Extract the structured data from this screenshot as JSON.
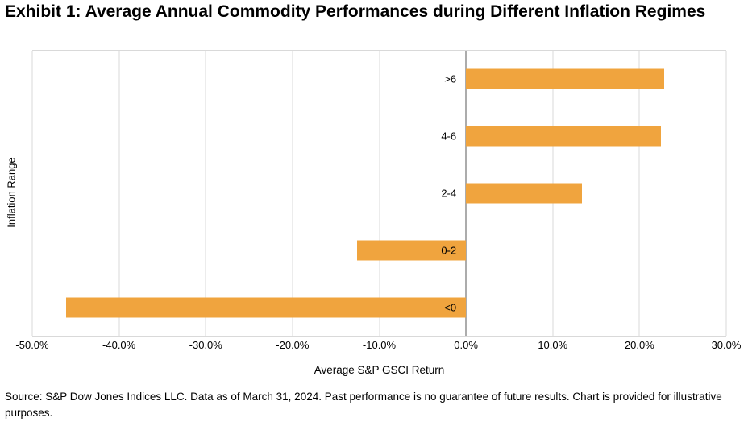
{
  "header": {
    "title": "Exhibit 1: Average Annual Commodity Performances during Different Inflation Regimes"
  },
  "chart_data": {
    "type": "bar",
    "orientation": "horizontal",
    "title": "Exhibit 1: Average Annual Commodity Performances during Different Inflation Regimes",
    "categories": [
      ">6",
      "4-6",
      "2-4",
      "0-2",
      "<0"
    ],
    "values": [
      22.8,
      22.5,
      13.4,
      -12.6,
      -46.1
    ],
    "xlabel": "Average S&P GSCI Return",
    "ylabel": "Inflation Range",
    "xlim": [
      -50,
      30
    ],
    "x_ticks": [
      -50,
      -40,
      -30,
      -20,
      -10,
      0,
      10,
      20,
      30
    ],
    "x_tick_labels": [
      "-50.0%",
      "-40.0%",
      "-30.0%",
      "-20.0%",
      "-10.0%",
      "0.0%",
      "10.0%",
      "20.0%",
      "30.0%"
    ],
    "grid": true,
    "legend": "none",
    "bar_color": "#F0A43E",
    "gridline_color": "#D9D9D9",
    "zero_line_color": "#595959"
  },
  "footer": {
    "source": "Source: S&P Dow Jones Indices LLC. Data as of March 31, 2024. Past performance is no guarantee of future results. Chart is provided for illustrative purposes."
  }
}
